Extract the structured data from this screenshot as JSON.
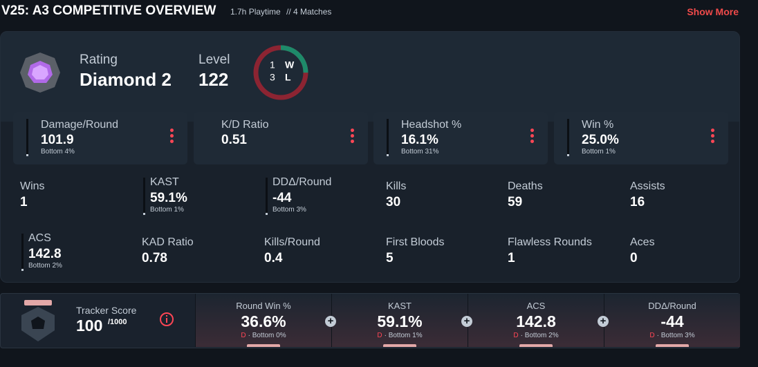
{
  "header": {
    "title": "V25: A3 COMPETITIVE OVERVIEW",
    "playtime": "1.7h Playtime",
    "matches": "// 4 Matches",
    "show_more": "Show More"
  },
  "summary": {
    "rating_label": "Rating",
    "rating": "Diamond 2",
    "level_label": "Level",
    "level": "122",
    "record": {
      "wins": 1,
      "wins_label": "W",
      "losses": 3,
      "losses_label": "L"
    }
  },
  "cards": [
    {
      "label": "Damage/Round",
      "value": "101.9",
      "sub": "Bottom 4%"
    },
    {
      "label": "K/D Ratio",
      "value": "0.51"
    },
    {
      "label": "Headshot %",
      "value": "16.1%",
      "sub": "Bottom 31%"
    },
    {
      "label": "Win %",
      "value": "25.0%",
      "sub": "Bottom 1%"
    }
  ],
  "stats": [
    [
      {
        "label": "Wins",
        "value": "1"
      },
      {
        "label": "KAST",
        "value": "59.1%",
        "sub": "Bottom 1%"
      },
      {
        "label": "DDΔ/Round",
        "value": "-44",
        "sub": "Bottom 3%"
      },
      {
        "label": "Kills",
        "value": "30"
      },
      {
        "label": "Deaths",
        "value": "59"
      },
      {
        "label": "Assists",
        "value": "16"
      }
    ],
    [
      {
        "label": "ACS",
        "value": "142.8",
        "sub": "Bottom 2%"
      },
      {
        "label": "KAD Ratio",
        "value": "0.78"
      },
      {
        "label": "Kills/Round",
        "value": "0.4"
      },
      {
        "label": "First Bloods",
        "value": "5"
      },
      {
        "label": "Flawless Rounds",
        "value": "1"
      },
      {
        "label": "Aces",
        "value": "0"
      }
    ]
  ],
  "tracker": {
    "label": "Tracker Score",
    "value": "100",
    "max": "/1000",
    "metrics": [
      {
        "label": "Round Win %",
        "value": "36.6%",
        "grade": "D",
        "sub": "· Bottom 0%"
      },
      {
        "label": "KAST",
        "value": "59.1%",
        "grade": "D",
        "sub": "· Bottom 1%"
      },
      {
        "label": "ACS",
        "value": "142.8",
        "grade": "D",
        "sub": "· Bottom 2%"
      },
      {
        "label": "DDΔ/Round",
        "value": "-44",
        "grade": "D",
        "sub": "· Bottom 3%"
      }
    ]
  }
}
